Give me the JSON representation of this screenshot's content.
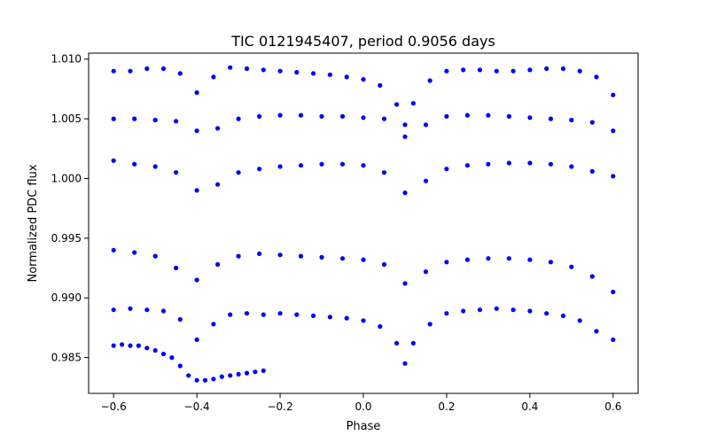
{
  "chart_data": {
    "type": "scatter",
    "title": "TIC 0121945407, period 0.9056 days",
    "xlabel": "Phase",
    "ylabel": "Normalized PDC flux",
    "xlim": [
      -0.66,
      0.66
    ],
    "ylim": [
      0.982,
      1.0105
    ],
    "xticks": [
      -0.6,
      -0.4,
      -0.2,
      0.0,
      0.2,
      0.4,
      0.6
    ],
    "xtick_labels": [
      "−0.6",
      "−0.4",
      "−0.2",
      "0.0",
      "0.2",
      "0.4",
      "0.6"
    ],
    "yticks": [
      0.985,
      0.99,
      0.995,
      1.0,
      1.005,
      1.01
    ],
    "ytick_labels": [
      "0.985",
      "0.990",
      "0.995",
      "1.000",
      "1.005",
      "1.010"
    ],
    "grid": false,
    "marker_color": "#0000ff",
    "series": [
      {
        "name": "PDC flux",
        "primary_eclipse_phase": 0.1,
        "secondary_eclipse_phase": -0.4,
        "x": [
          -0.6,
          -0.58,
          -0.56,
          -0.54,
          -0.52,
          -0.5,
          -0.48,
          -0.46,
          -0.44,
          -0.42,
          -0.4,
          -0.38,
          -0.36,
          -0.34,
          -0.32,
          -0.3,
          -0.28,
          -0.26,
          -0.24,
          -0.6,
          -0.56,
          -0.52,
          -0.48,
          -0.44,
          -0.4,
          -0.36,
          -0.32,
          -0.28,
          -0.24,
          -0.2,
          -0.16,
          -0.12,
          -0.08,
          -0.04,
          0.0,
          0.04,
          0.08,
          0.1,
          0.12,
          0.16,
          0.2,
          0.24,
          0.28,
          0.32,
          0.36,
          0.4,
          0.44,
          0.48,
          0.52,
          0.56,
          0.6,
          -0.6,
          -0.56,
          -0.52,
          -0.48,
          -0.44,
          -0.4,
          -0.36,
          -0.32,
          -0.28,
          -0.24,
          -0.2,
          -0.16,
          -0.12,
          -0.08,
          -0.04,
          0.0,
          0.04,
          0.08,
          0.1,
          0.12,
          0.16,
          0.2,
          0.24,
          0.28,
          0.32,
          0.36,
          0.4,
          0.44,
          0.48,
          0.52,
          0.56,
          0.6,
          -0.6,
          -0.55,
          -0.5,
          -0.45,
          -0.4,
          -0.35,
          -0.3,
          -0.25,
          -0.2,
          -0.15,
          -0.1,
          -0.05,
          0.0,
          0.05,
          0.1,
          0.15,
          0.2,
          0.25,
          0.3,
          0.35,
          0.4,
          0.45,
          0.5,
          0.55,
          0.6,
          -0.6,
          -0.55,
          -0.5,
          -0.45,
          -0.4,
          -0.35,
          -0.3,
          -0.25,
          -0.2,
          -0.15,
          -0.1,
          -0.05,
          0.0,
          0.05,
          0.1,
          0.15,
          0.2,
          0.25,
          0.3,
          0.35,
          0.4,
          0.45,
          0.5,
          0.55,
          0.6,
          -0.6,
          -0.55,
          -0.5,
          -0.45,
          -0.4,
          -0.35,
          -0.3,
          -0.25,
          -0.2,
          -0.15,
          -0.1,
          -0.05,
          0.0,
          0.05,
          0.1,
          0.15,
          0.2,
          0.25,
          0.3,
          0.35,
          0.4,
          0.45,
          0.5,
          0.55,
          0.6
        ],
        "y": [
          0.986,
          0.9861,
          0.986,
          0.986,
          0.9858,
          0.9856,
          0.9853,
          0.985,
          0.9843,
          0.9835,
          0.9831,
          0.9831,
          0.9832,
          0.9834,
          0.9835,
          0.9836,
          0.9837,
          0.9838,
          0.9839,
          0.989,
          0.9891,
          0.989,
          0.9889,
          0.9882,
          0.9865,
          0.9878,
          0.9886,
          0.9887,
          0.9886,
          0.9887,
          0.9886,
          0.9885,
          0.9884,
          0.9883,
          0.9881,
          0.9876,
          0.9862,
          0.9845,
          0.9862,
          0.9878,
          0.9887,
          0.9889,
          0.989,
          0.9891,
          0.989,
          0.9889,
          0.9887,
          0.9885,
          0.9881,
          0.9872,
          0.9865,
          1.009,
          1.009,
          1.0092,
          1.0092,
          1.0088,
          1.0072,
          1.0085,
          1.0093,
          1.0092,
          1.0091,
          1.009,
          1.0089,
          1.0088,
          1.0087,
          1.0085,
          1.0083,
          1.0078,
          1.0062,
          1.0045,
          1.0063,
          1.0082,
          1.009,
          1.0091,
          1.0091,
          1.009,
          1.009,
          1.0091,
          1.0092,
          1.0092,
          1.009,
          1.0085,
          1.007,
          1.005,
          1.005,
          1.0049,
          1.0048,
          1.004,
          1.0042,
          1.005,
          1.0052,
          1.0053,
          1.0053,
          1.0052,
          1.0052,
          1.0051,
          1.005,
          1.0035,
          1.0045,
          1.0052,
          1.0053,
          1.0053,
          1.0052,
          1.0051,
          1.005,
          1.0049,
          1.0047,
          1.004,
          0.994,
          0.9938,
          0.9935,
          0.9925,
          0.9915,
          0.9928,
          0.9935,
          0.9937,
          0.9936,
          0.9935,
          0.9934,
          0.9933,
          0.9932,
          0.9928,
          0.9912,
          0.9922,
          0.993,
          0.9932,
          0.9933,
          0.9933,
          0.9932,
          0.993,
          0.9926,
          0.9918,
          0.9905,
          1.0015,
          1.0012,
          1.001,
          1.0005,
          0.999,
          0.9995,
          1.0005,
          1.0008,
          1.001,
          1.0011,
          1.0012,
          1.0012,
          1.0011,
          1.0005,
          0.9988,
          0.9998,
          1.0008,
          1.0011,
          1.0012,
          1.0013,
          1.0013,
          1.0012,
          1.001,
          1.0006,
          1.0002
        ]
      }
    ]
  }
}
